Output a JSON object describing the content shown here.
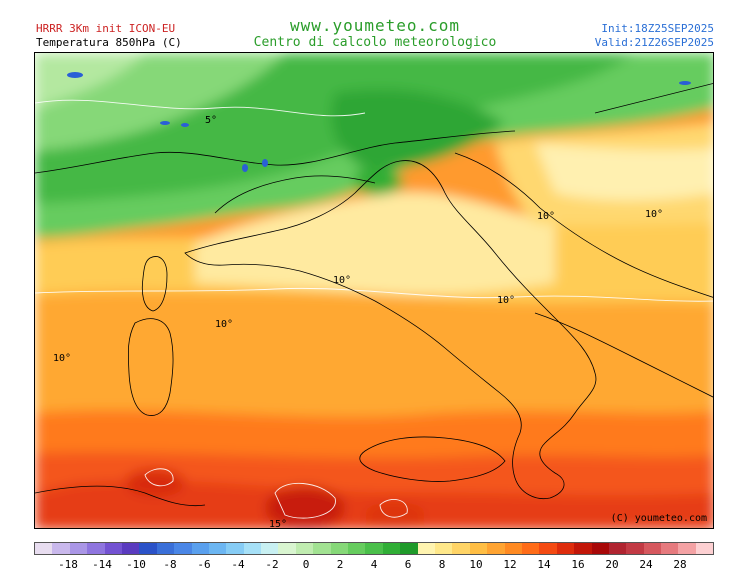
{
  "header": {
    "model": "HRRR 3Km init ICON-EU",
    "variable": "Temperatura 850hPa (C)",
    "site": "www.youmeteo.com",
    "subtitle": "Centro di calcolo meteorologico",
    "init": "Init:18Z25SEP2025",
    "valid": "Valid:21Z26SEP2025"
  },
  "map": {
    "copyright": "(C) youmeteo.com",
    "isotherm_labels": [
      "5°",
      "10°",
      "10°",
      "10°",
      "10°",
      "10°",
      "10°",
      "15°"
    ]
  },
  "legend": {
    "colors": [
      "#e8ddf0",
      "#c9b8ec",
      "#aa96e6",
      "#8f75df",
      "#7352d2",
      "#5a3bbf",
      "#2b52c8",
      "#3a6fd8",
      "#4a86e6",
      "#5aa0ee",
      "#6cb6f2",
      "#86ccf5",
      "#a6e0f7",
      "#c8f0f2",
      "#d9f5d0",
      "#c0ecb0",
      "#a2e292",
      "#86d878",
      "#66cc5e",
      "#4abf4a",
      "#30ae36",
      "#1f9a2a",
      "#fff4b0",
      "#ffe88a",
      "#ffd466",
      "#ffbe44",
      "#ffa432",
      "#ff8a22",
      "#ff6c18",
      "#f44a12",
      "#de2c0c",
      "#c21608",
      "#a80808",
      "#b02430",
      "#c23a44",
      "#d6585e",
      "#e67a7e",
      "#f4a2a4",
      "#fdd0d2"
    ],
    "tick_labels": [
      "-18",
      "-14",
      "-10",
      "-8",
      "-6",
      "-4",
      "-2",
      "0",
      "2",
      "4",
      "6",
      "8",
      "10",
      "12",
      "14",
      "16",
      "20",
      "24",
      "28"
    ]
  }
}
